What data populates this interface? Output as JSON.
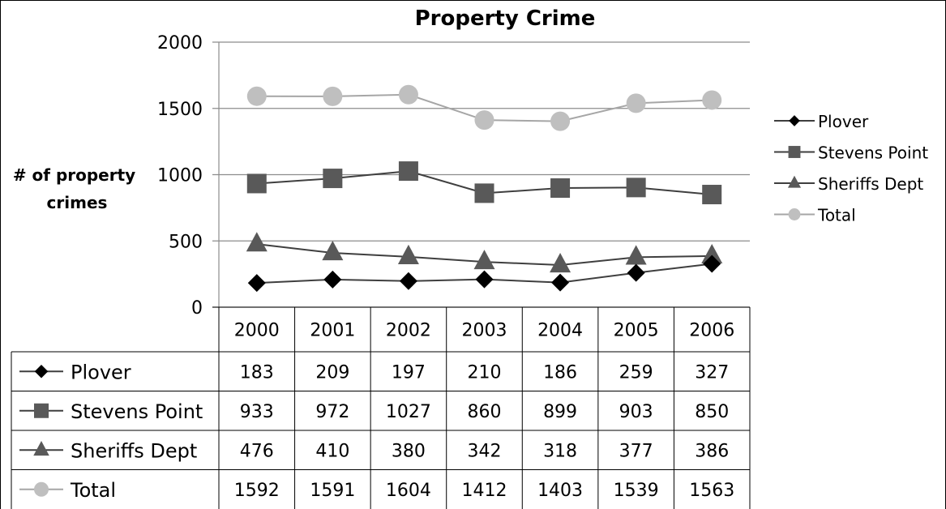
{
  "chart_data": {
    "type": "line",
    "title": "Property Crime",
    "ylabel_lines": [
      "# of property",
      "crimes"
    ],
    "ylim": [
      0,
      2000
    ],
    "yticks": [
      "0",
      "500",
      "1000",
      "1500",
      "2000"
    ],
    "categories": [
      "2000",
      "2001",
      "2002",
      "2003",
      "2004",
      "2005",
      "2006"
    ],
    "grid": true,
    "legend_position": "right",
    "data_table": true,
    "series": [
      {
        "name": "Plover",
        "marker": "diamond",
        "color": "#000000",
        "values": [
          183,
          209,
          197,
          210,
          186,
          259,
          327
        ],
        "labels": [
          "183",
          "209",
          "197",
          "210",
          "186",
          "259",
          "327"
        ]
      },
      {
        "name": "Stevens Point",
        "marker": "square",
        "color": "#595959",
        "values": [
          933,
          972,
          1027,
          860,
          899,
          903,
          850
        ],
        "labels": [
          "933",
          "972",
          "1027",
          "860",
          "899",
          "903",
          "850"
        ]
      },
      {
        "name": "Sheriffs Dept",
        "marker": "triangle",
        "color": "#595959",
        "values": [
          476,
          410,
          380,
          342,
          318,
          377,
          386
        ],
        "labels": [
          "476",
          "410",
          "380",
          "342",
          "318",
          "377",
          "386"
        ]
      },
      {
        "name": "Total",
        "marker": "circle",
        "color": "#bfbfbf",
        "values": [
          1592,
          1591,
          1604,
          1412,
          1403,
          1539,
          1563
        ],
        "labels": [
          "1592",
          "1591",
          "1604",
          "1412",
          "1403",
          "1539",
          "1563"
        ]
      }
    ]
  }
}
